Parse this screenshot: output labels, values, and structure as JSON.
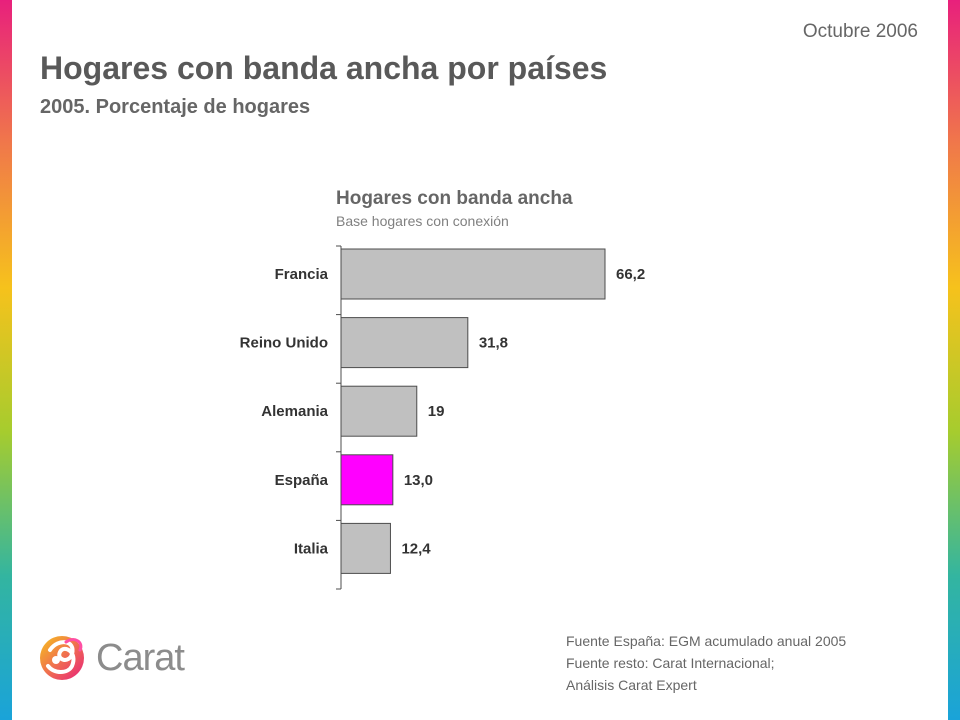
{
  "header": {
    "date": "Octubre 2006",
    "title": "Hogares con banda ancha por países",
    "subtitle": "2005. Porcentaje de hogares"
  },
  "colors": {
    "bar_default": "#c0c0c0",
    "bar_highlight": "#ff00ff",
    "bar_stroke": "#4d4d4d",
    "text_dark": "#595959",
    "brand_gradient": [
      "#e8207c",
      "#f0784a",
      "#f6c21c",
      "#a6cc2e",
      "#33b5a0",
      "#1aa3d9"
    ]
  },
  "chart_data": {
    "type": "bar",
    "orientation": "horizontal",
    "title": "Hogares con banda ancha",
    "subtitle": "Base hogares con conexión",
    "categories": [
      "Francia",
      "Reino Unido",
      "Alemania",
      "España",
      "Italia"
    ],
    "values": [
      66.2,
      31.8,
      19,
      13.0,
      12.4
    ],
    "value_labels": [
      "66,2",
      "31,8",
      "19",
      "13,0",
      "12,4"
    ],
    "highlight": "España",
    "xlim": [
      0,
      70
    ],
    "grid": false,
    "axis_ticks": false
  },
  "logo": {
    "icon": "carat-swirl-logo",
    "text": "Carat"
  },
  "sources": [
    "Fuente España: EGM acumulado anual 2005",
    "Fuente resto: Carat Internacional;",
    "Análisis Carat Expert"
  ]
}
